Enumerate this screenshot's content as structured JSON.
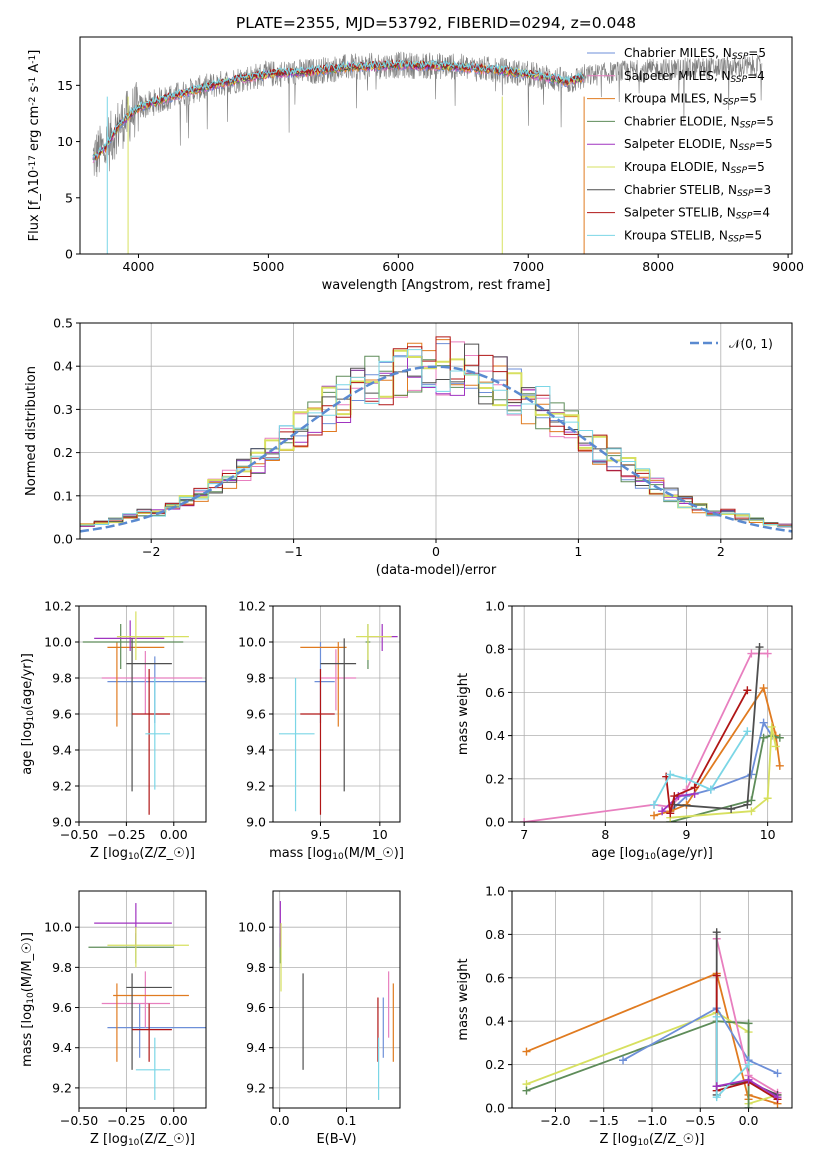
{
  "chart_data": [
    {
      "id": "spectrum",
      "type": "line",
      "title": "PLATE=2355, MJD=53792, FIBERID=0294, z=0.048",
      "xlabel": "wavelength [Angstrom, rest frame]",
      "ylabel": "Flux [f$_\\lambda$10$^{-17}$ erg cm$^{-2}$ s$^{-1}$ A$^{-1}$]",
      "xlim": [
        3550,
        9030
      ],
      "ylim": [
        0,
        19.3
      ],
      "xticks": [
        4000,
        5000,
        6000,
        7000,
        8000,
        9000
      ],
      "yticks": [
        0,
        5,
        10,
        15
      ],
      "legend_position": "upper right",
      "legend": [
        {
          "label": "Chabrier MILES, N",
          "sub": "SSP",
          "suffix": "=5",
          "color": "#6d8fd8"
        },
        {
          "label": "Salpeter MILES, N",
          "sub": "SSP",
          "suffix": "=4",
          "color": "#e87fbf"
        },
        {
          "label": "Kroupa MILES, N",
          "sub": "SSP",
          "suffix": "=5",
          "color": "#e07b20"
        },
        {
          "label": "Chabrier ELODIE, N",
          "sub": "SSP",
          "suffix": "=5",
          "color": "#5e8c59"
        },
        {
          "label": "Salpeter ELODIE, N",
          "sub": "SSP",
          "suffix": "=5",
          "color": "#a034c0"
        },
        {
          "label": "Kroupa ELODIE, N",
          "sub": "SSP",
          "suffix": "=5",
          "color": "#d7e060"
        },
        {
          "label": "Chabrier STELIB, N",
          "sub": "SSP",
          "suffix": "=3",
          "color": "#4f4f4f"
        },
        {
          "label": "Salpeter STELIB, N",
          "sub": "SSP",
          "suffix": "=4",
          "color": "#b01616"
        },
        {
          "label": "Kroupa STELIB, N",
          "sub": "SSP",
          "suffix": "=5",
          "color": "#7bd6e6"
        }
      ],
      "data_color": "#7f7f7f",
      "continuum": [
        [
          3650,
          8.5
        ],
        [
          3750,
          9.5
        ],
        [
          3850,
          11.5
        ],
        [
          4000,
          13.0
        ],
        [
          4200,
          13.8
        ],
        [
          4500,
          14.8
        ],
        [
          4800,
          15.6
        ],
        [
          5000,
          16.0
        ],
        [
          5300,
          16.2
        ],
        [
          5600,
          16.6
        ],
        [
          6000,
          16.8
        ],
        [
          6400,
          16.7
        ],
        [
          6800,
          16.3
        ],
        [
          7000,
          16.0
        ],
        [
          7200,
          15.6
        ],
        [
          7300,
          15.3
        ],
        [
          7450,
          15.8
        ],
        [
          7550,
          16.0
        ],
        [
          7700,
          16.2
        ],
        [
          8000,
          16.4
        ],
        [
          8300,
          16.5
        ],
        [
          8600,
          16.6
        ],
        [
          8800,
          16.7
        ]
      ],
      "model_range": [
        3650,
        7430
      ]
    },
    {
      "id": "residuals",
      "type": "step",
      "xlabel": "(data-model)/error",
      "ylabel": "Normed distribution",
      "xlim": [
        -2.5,
        2.5
      ],
      "ylim": [
        0,
        0.5
      ],
      "xticks": [
        -2,
        -1,
        0,
        1,
        2
      ],
      "yticks": [
        0.0,
        0.1,
        0.2,
        0.3,
        0.4,
        0.5
      ],
      "gaussian_label": "$\\mathcal{N}(0,1)$",
      "gaussian_color": "#5a8ad0",
      "grid": true,
      "bin_width": 0.1
    },
    {
      "id": "age-Z",
      "type": "errorbar",
      "xlabel": "Z [log$_{10}$($Z/Z_\\odot$)]",
      "ylabel": "age  [log$_{10}$($age/yr$)]",
      "xlim": [
        -0.5,
        0.17
      ],
      "ylim": [
        9.0,
        10.2
      ],
      "xticks": [
        -0.5,
        -0.25,
        0.0
      ],
      "xticklabels": [
        "−0.50",
        "−0.25",
        "0.00"
      ],
      "yticks": [
        9.0,
        9.2,
        9.4,
        9.6,
        9.8,
        10.0,
        10.2
      ],
      "points": [
        {
          "c": "#6d8fd8",
          "x": -0.1,
          "xe": [
            -0.35,
            0.2
          ],
          "y": 9.78,
          "ye": [
            9.55,
            9.92
          ]
        },
        {
          "c": "#e87fbf",
          "x": -0.15,
          "xe": [
            -0.38,
            0.15
          ],
          "y": 9.8,
          "ye": [
            9.6,
            9.95
          ]
        },
        {
          "c": "#e07b20",
          "x": -0.3,
          "xe": [
            -0.35,
            -0.05
          ],
          "y": 9.97,
          "ye": [
            9.53,
            10.0
          ]
        },
        {
          "c": "#5e8c59",
          "x": -0.28,
          "xe": [
            -0.48,
            0.05
          ],
          "y": 10.0,
          "ye": [
            9.85,
            10.1
          ]
        },
        {
          "c": "#a034c0",
          "x": -0.23,
          "xe": [
            -0.42,
            -0.05
          ],
          "y": 10.02,
          "ye": [
            9.95,
            10.12
          ]
        },
        {
          "c": "#d7e060",
          "x": -0.2,
          "xe": [
            -0.3,
            0.08
          ],
          "y": 10.03,
          "ye": [
            9.9,
            10.17
          ]
        },
        {
          "c": "#4f4f4f",
          "x": -0.22,
          "xe": [
            -0.25,
            -0.01
          ],
          "y": 9.88,
          "ye": [
            9.17,
            10.02
          ]
        },
        {
          "c": "#b01616",
          "x": -0.13,
          "xe": [
            -0.22,
            -0.02
          ],
          "y": 9.6,
          "ye": [
            9.04,
            9.85
          ]
        },
        {
          "c": "#7bd6e6",
          "x": -0.1,
          "xe": [
            -0.15,
            -0.02
          ],
          "y": 9.49,
          "ye": [
            9.18,
            9.8
          ]
        }
      ]
    },
    {
      "id": "age-mass",
      "type": "errorbar",
      "xlabel": "mass [log$_{10}$($M/M_\\odot$)]",
      "xlim": [
        9.1,
        10.17
      ],
      "ylim": [
        9.0,
        10.2
      ],
      "xticks": [
        9.5,
        10.0
      ],
      "yticks": [
        9.0,
        9.2,
        9.4,
        9.6,
        9.8,
        10.0,
        10.2
      ],
      "points": [
        {
          "c": "#6d8fd8",
          "x": 9.5,
          "xe": [
            9.45,
            9.62
          ],
          "y": 9.78,
          "ye": [
            9.55,
            10.0
          ]
        },
        {
          "c": "#e87fbf",
          "x": 9.63,
          "xe": [
            9.5,
            9.8
          ],
          "y": 9.8,
          "ye": [
            9.62,
            9.96
          ]
        },
        {
          "c": "#e07b20",
          "x": 9.65,
          "xe": [
            9.33,
            9.72
          ],
          "y": 9.97,
          "ye": [
            9.53,
            10.0
          ]
        },
        {
          "c": "#5e8c59",
          "x": 9.9,
          "xe": [
            9.88,
            9.92
          ],
          "y": 10.0,
          "ye": [
            9.85,
            10.1
          ]
        },
        {
          "c": "#a034c0",
          "x": 10.02,
          "xe": [
            9.9,
            10.15
          ],
          "y": 10.03,
          "ye": [
            9.95,
            10.1
          ]
        },
        {
          "c": "#d7e060",
          "x": 9.9,
          "xe": [
            9.8,
            10.1
          ],
          "y": 10.03,
          "ye": [
            9.9,
            10.1
          ]
        },
        {
          "c": "#4f4f4f",
          "x": 9.7,
          "xe": [
            9.5,
            9.8
          ],
          "y": 9.88,
          "ye": [
            9.17,
            10.02
          ]
        },
        {
          "c": "#b01616",
          "x": 9.5,
          "xe": [
            9.33,
            9.62
          ],
          "y": 9.6,
          "ye": [
            9.04,
            9.85
          ]
        },
        {
          "c": "#7bd6e6",
          "x": 9.29,
          "xe": [
            9.15,
            9.45
          ],
          "y": 9.49,
          "ye": [
            9.06,
            9.8
          ]
        }
      ]
    },
    {
      "id": "massweight-age",
      "type": "line",
      "xlabel": "age  [log$_{10}$($age/yr$)]",
      "ylabel": "mass weight",
      "xlim": [
        6.85,
        10.3
      ],
      "ylim": [
        0.0,
        1.0
      ],
      "xticks": [
        7,
        8,
        9,
        10
      ],
      "yticks": [
        0.0,
        0.2,
        0.4,
        0.6,
        0.8,
        1.0
      ],
      "series": [
        {
          "c": "#e87fbf",
          "x": [
            7.0,
            8.6,
            8.8,
            9.0,
            9.8,
            10.0
          ],
          "y": [
            0.0,
            0.08,
            0.07,
            0.15,
            0.78,
            0.78
          ]
        },
        {
          "c": "#6d8fd8",
          "x": [
            8.8,
            9.0,
            9.3,
            9.8,
            9.95,
            10.05
          ],
          "y": [
            0.05,
            0.12,
            0.15,
            0.22,
            0.46,
            0.4
          ]
        },
        {
          "c": "#e07b20",
          "x": [
            8.6,
            8.8,
            9.0,
            9.95,
            10.1,
            10.15
          ],
          "y": [
            0.03,
            0.05,
            0.08,
            0.62,
            0.4,
            0.26
          ]
        },
        {
          "c": "#5e8c59",
          "x": [
            8.8,
            9.8,
            9.95,
            10.05,
            10.15
          ],
          "y": [
            0.0,
            0.1,
            0.39,
            0.4,
            0.39
          ]
        },
        {
          "c": "#a034c0",
          "x": [
            8.7,
            8.9,
            9.1
          ],
          "y": [
            0.05,
            0.12,
            0.13
          ]
        },
        {
          "c": "#d7e060",
          "x": [
            8.8,
            9.8,
            10.0,
            10.05,
            10.1
          ],
          "y": [
            0.02,
            0.05,
            0.11,
            0.44,
            0.35
          ]
        },
        {
          "c": "#4f4f4f",
          "x": [
            8.85,
            9.55,
            9.75,
            9.9
          ],
          "y": [
            0.08,
            0.06,
            0.08,
            0.81
          ]
        },
        {
          "c": "#b01616",
          "x": [
            8.75,
            8.8,
            8.85,
            9.1,
            9.75
          ],
          "y": [
            0.21,
            0.04,
            0.12,
            0.16,
            0.61
          ]
        },
        {
          "c": "#7bd6e6",
          "x": [
            8.6,
            8.8,
            9.0,
            9.3,
            9.75
          ],
          "y": [
            0.08,
            0.22,
            0.2,
            0.15,
            0.42
          ]
        }
      ]
    },
    {
      "id": "mass-Z",
      "type": "errorbar",
      "xlabel": "Z [log$_{10}$($Z/Z_\\odot$)]",
      "ylabel": "mass [log$_{10}$($M/M_\\odot$)]",
      "xlim": [
        -0.5,
        0.17
      ],
      "ylim": [
        9.1,
        10.18
      ],
      "xticks": [
        -0.5,
        -0.25,
        0.0
      ],
      "xticklabels": [
        "−0.50",
        "−0.25",
        "0.00"
      ],
      "yticks": [
        9.2,
        9.4,
        9.6,
        9.8,
        10.0
      ],
      "points": [
        {
          "c": "#6d8fd8",
          "x": -0.18,
          "xe": [
            -0.35,
            0.17
          ],
          "y": 9.5,
          "ye": [
            9.35,
            9.62
          ]
        },
        {
          "c": "#e87fbf",
          "x": -0.15,
          "xe": [
            -0.38,
            -0.02
          ],
          "y": 9.62,
          "ye": [
            9.5,
            9.78
          ]
        },
        {
          "c": "#e07b20",
          "x": -0.3,
          "xe": [
            -0.32,
            0.08
          ],
          "y": 9.66,
          "ye": [
            9.33,
            9.72
          ]
        },
        {
          "c": "#5e8c59",
          "x": -0.2,
          "xe": [
            -0.45,
            0.0
          ],
          "y": 9.9,
          "ye": [
            9.82,
            9.97
          ]
        },
        {
          "c": "#a034c0",
          "x": -0.2,
          "xe": [
            -0.42,
            -0.01
          ],
          "y": 10.02,
          "ye": [
            9.9,
            10.12
          ]
        },
        {
          "c": "#d7e060",
          "x": -0.2,
          "xe": [
            -0.35,
            0.08
          ],
          "y": 9.91,
          "ye": [
            9.8,
            10.0
          ]
        },
        {
          "c": "#4f4f4f",
          "x": -0.22,
          "xe": [
            -0.25,
            -0.01
          ],
          "y": 9.7,
          "ye": [
            9.29,
            9.77
          ]
        },
        {
          "c": "#b01616",
          "x": -0.13,
          "xe": [
            -0.22,
            -0.01
          ],
          "y": 9.49,
          "ye": [
            9.33,
            9.62
          ]
        },
        {
          "c": "#7bd6e6",
          "x": -0.1,
          "xe": [
            -0.2,
            -0.02
          ],
          "y": 9.29,
          "ye": [
            9.14,
            9.45
          ]
        }
      ]
    },
    {
      "id": "mass-EBV",
      "type": "errorbar",
      "xlabel": "E(B-V)",
      "xlim": [
        -0.01,
        0.18
      ],
      "ylim": [
        9.1,
        10.18
      ],
      "xticks": [
        0.0,
        0.1
      ],
      "xticklabels": [
        "0.0",
        "0.1"
      ],
      "yticks": [
        9.2,
        9.4,
        9.6,
        9.8,
        10.0
      ],
      "points": [
        {
          "c": "#6d8fd8",
          "x": 0.155,
          "xe": [
            0.155,
            0.155
          ],
          "y": 9.5,
          "ye": [
            9.35,
            9.65
          ]
        },
        {
          "c": "#e87fbf",
          "x": 0.163,
          "xe": [
            0.163,
            0.163
          ],
          "y": 9.62,
          "ye": [
            9.45,
            9.78
          ]
        },
        {
          "c": "#e07b20",
          "x": 0.17,
          "xe": [
            0.17,
            0.17
          ],
          "y": 9.66,
          "ye": [
            9.33,
            9.72
          ]
        },
        {
          "c": "#5e8c59",
          "x": 0.001,
          "xe": [
            0.001,
            0.001
          ],
          "y": 9.9,
          "ye": [
            9.82,
            9.97
          ]
        },
        {
          "c": "#a034c0",
          "x": 0.001,
          "xe": [
            0.001,
            0.001
          ],
          "y": 10.02,
          "ye": [
            9.9,
            10.13
          ]
        },
        {
          "c": "#d7e060",
          "x": 0.002,
          "xe": [
            0.002,
            0.002
          ],
          "y": 9.9,
          "ye": [
            9.68,
            10.02
          ]
        },
        {
          "c": "#4f4f4f",
          "x": 0.035,
          "xe": [
            0.035,
            0.035
          ],
          "y": 9.6,
          "ye": [
            9.29,
            9.77
          ]
        },
        {
          "c": "#b01616",
          "x": 0.147,
          "xe": [
            0.147,
            0.147
          ],
          "y": 9.49,
          "ye": [
            9.33,
            9.65
          ]
        },
        {
          "c": "#7bd6e6",
          "x": 0.148,
          "xe": [
            0.148,
            0.148
          ],
          "y": 9.29,
          "ye": [
            9.14,
            9.45
          ]
        }
      ]
    },
    {
      "id": "massweight-Z",
      "type": "line",
      "xlabel": "Z [log$_{10}$($Z/Z_\\odot$)]",
      "ylabel": "mass weight",
      "xlim": [
        -2.45,
        0.45
      ],
      "ylim": [
        0.0,
        1.0
      ],
      "xticks": [
        -2.0,
        -1.5,
        -1.0,
        -0.5,
        0.0
      ],
      "xticklabels": [
        "−2.0",
        "−1.5",
        "−1.0",
        "−0.5",
        "0.0"
      ],
      "yticks": [
        0.0,
        0.2,
        0.4,
        0.6,
        0.8,
        1.0
      ],
      "series": [
        {
          "c": "#e07b20",
          "x": [
            -2.3,
            -0.33,
            0.0,
            0.0,
            0.3
          ],
          "y": [
            0.26,
            0.62,
            0.04,
            0.06,
            0.02
          ]
        },
        {
          "c": "#d7e060",
          "x": [
            -2.3,
            -0.33,
            0.0,
            0.0,
            0.3
          ],
          "y": [
            0.11,
            0.44,
            0.35,
            0.02,
            0.06
          ]
        },
        {
          "c": "#5e8c59",
          "x": [
            -2.3,
            -0.33,
            0.0,
            0.0
          ],
          "y": [
            0.08,
            0.4,
            0.39,
            0.0
          ]
        },
        {
          "c": "#6d8fd8",
          "x": [
            -1.3,
            -0.33,
            0.0,
            0.3
          ],
          "y": [
            0.22,
            0.46,
            0.22,
            0.16
          ]
        },
        {
          "c": "#e87fbf",
          "x": [
            -0.33,
            0.0,
            0.3
          ],
          "y": [
            0.78,
            0.15,
            0.07
          ]
        },
        {
          "c": "#4f4f4f",
          "x": [
            -0.33,
            -0.33,
            -0.33,
            0.0,
            0.3
          ],
          "y": [
            0.81,
            0.06,
            0.1,
            0.12,
            0.06
          ]
        },
        {
          "c": "#b01616",
          "x": [
            -0.33,
            -0.33,
            0.0,
            0.3
          ],
          "y": [
            0.61,
            0.08,
            0.12,
            0.04
          ]
        },
        {
          "c": "#7bd6e6",
          "x": [
            -0.33,
            -0.33,
            0.0
          ],
          "y": [
            0.42,
            0.05,
            0.2
          ]
        },
        {
          "c": "#a034c0",
          "x": [
            -0.33,
            0.0,
            0.3
          ],
          "y": [
            0.1,
            0.13,
            0.05
          ]
        }
      ]
    }
  ]
}
